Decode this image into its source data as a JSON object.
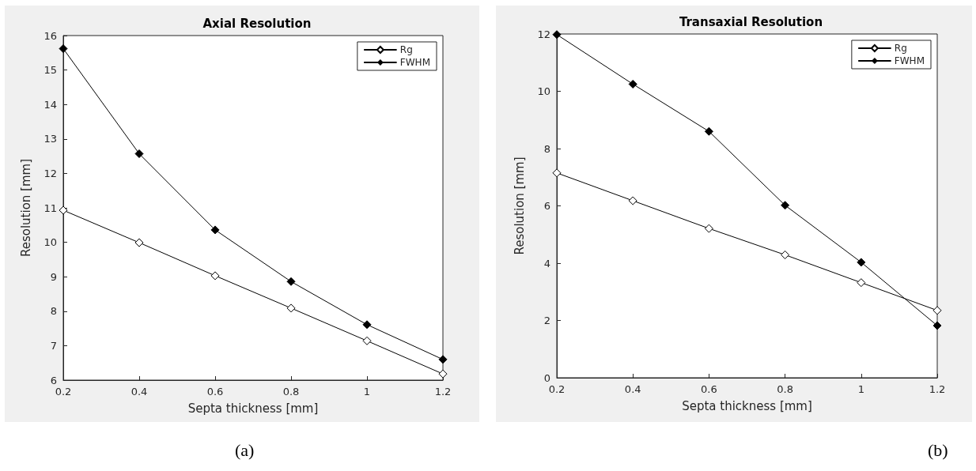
{
  "chart_data": [
    {
      "type": "line",
      "title": "Axial Resolution",
      "xlabel": "Septa thickness [mm]",
      "ylabel": "Resolution [mm]",
      "annotations": [
        "(a)"
      ],
      "x": [
        0.2,
        0.4,
        0.6,
        0.8,
        1.0,
        1.2
      ],
      "xlim": [
        0.2,
        1.2
      ],
      "xticks": [
        0.2,
        0.4,
        0.6,
        0.8,
        1,
        1.2
      ],
      "ylim": [
        6,
        16
      ],
      "yticks": [
        6,
        7,
        8,
        9,
        10,
        11,
        12,
        13,
        14,
        15,
        16
      ],
      "marker": "diamond",
      "line_style": "solid",
      "legend": "top right",
      "grid": false,
      "series": [
        {
          "name": "Rg",
          "color": "#000000",
          "values": [
            10.93,
            9.99,
            9.03,
            8.09,
            7.14,
            6.18
          ]
        },
        {
          "name": "FWHM",
          "color": "#000000",
          "values": [
            15.62,
            12.57,
            10.36,
            8.86,
            7.61,
            6.6
          ]
        }
      ]
    },
    {
      "type": "line",
      "title": "Transaxial Resolution",
      "xlabel": "Septa thickness [mm]",
      "ylabel": "Resolution [mm]",
      "annotations": [
        "(b)"
      ],
      "x": [
        0.2,
        0.4,
        0.6,
        0.8,
        1.0,
        1.2
      ],
      "xlim": [
        0.2,
        1.2
      ],
      "xticks": [
        0.2,
        0.4,
        0.6,
        0.8,
        1,
        1.2
      ],
      "ylim": [
        0,
        12
      ],
      "yticks": [
        0,
        2,
        4,
        6,
        8,
        10,
        12
      ],
      "marker": "diamond",
      "line_style": "solid",
      "legend": "top right",
      "grid": false,
      "series": [
        {
          "name": "Rg",
          "color": "#000000",
          "values": [
            7.15,
            6.18,
            5.21,
            4.29,
            3.32,
            2.35
          ]
        },
        {
          "name": "FWHM",
          "color": "#000000",
          "values": [
            11.98,
            10.25,
            8.6,
            6.02,
            4.03,
            1.82
          ]
        }
      ]
    }
  ]
}
